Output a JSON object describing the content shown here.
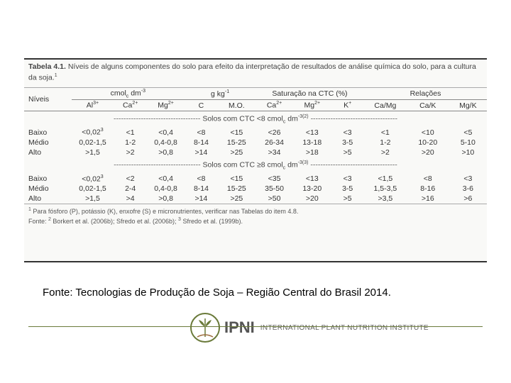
{
  "caption_bold": "Tabela 4.1.",
  "caption_text": " Níveis de alguns componentes do solo para efeito da interpretação de resultados de análise química do solo, para a cultura da soja.",
  "caption_sup": "1",
  "row_label": "Níveis",
  "groups": [
    {
      "label_html": "cmol<sub>c</sub> dm<sup>-3</sup>",
      "span": 3
    },
    {
      "label_html": "g kg<sup>-1</sup>",
      "span": 2
    },
    {
      "label_html": "Saturação na CTC (%)",
      "span": 3
    },
    {
      "label_html": "Relações",
      "span": 3
    }
  ],
  "columns": [
    {
      "label_html": "Al<sup>3+</sup>"
    },
    {
      "label_html": "Ca<sup>2+</sup>"
    },
    {
      "label_html": "Mg<sup>2+</sup>"
    },
    {
      "label_html": "C"
    },
    {
      "label_html": "M.O."
    },
    {
      "label_html": "Ca<sup>2+</sup>"
    },
    {
      "label_html": "Mg<sup>2+</sup>"
    },
    {
      "label_html": "K<sup>+</sup>"
    },
    {
      "label_html": "Ca/Mg"
    },
    {
      "label_html": "Ca/K"
    },
    {
      "label_html": "Mg/K"
    }
  ],
  "section1_label_html": "Solos com CTC &lt;8 cmol<sub>c</sub> dm<sup>-3(2)</sup>",
  "section2_label_html": "Solos com CTC ≥8 cmol<sub>c</sub> dm<sup>-3(3)</sup>",
  "rows1": [
    {
      "level": "Baixo",
      "cells_html": [
        "&lt;0,02<sup>3</sup>",
        "&lt;1",
        "&lt;0,4",
        "&lt;8",
        "&lt;15",
        "&lt;26",
        "&lt;13",
        "&lt;3",
        "&lt;1",
        "&lt;10",
        "&lt;5"
      ]
    },
    {
      "level": "Médio",
      "cells": [
        "0,02-1,5",
        "1-2",
        "0,4-0,8",
        "8-14",
        "15-25",
        "26-34",
        "13-18",
        "3-5",
        "1-2",
        "10-20",
        "5-10"
      ]
    },
    {
      "level": "Alto",
      "cells": [
        ">1,5",
        ">2",
        ">0,8",
        ">14",
        ">25",
        ">34",
        ">18",
        ">5",
        ">2",
        ">20",
        ">10"
      ]
    }
  ],
  "rows2": [
    {
      "level": "Baixo",
      "cells_html": [
        "&lt;0,02<sup>3</sup>",
        "&lt;2",
        "&lt;0,4",
        "&lt;8",
        "&lt;15",
        "&lt;35",
        "&lt;13",
        "&lt;3",
        "&lt;1,5",
        "&lt;8",
        "&lt;3"
      ]
    },
    {
      "level": "Médio",
      "cells": [
        "0,02-1,5",
        "2-4",
        "0,4-0,8",
        "8-14",
        "15-25",
        "35-50",
        "13-20",
        "3-5",
        "1,5-3,5",
        "8-16",
        "3-6"
      ]
    },
    {
      "level": "Alto",
      "cells": [
        ">1,5",
        ">4",
        ">0,8",
        ">14",
        ">25",
        ">50",
        ">20",
        ">5",
        ">3,5",
        ">16",
        ">6"
      ]
    }
  ],
  "footnote1_html": "<sup>1</sup> Para fósforo (P), potássio (K), enxofre (S) e micronutrientes, verificar nas Tabelas do item 4.8.",
  "footnote2_html": "Fonte: <sup>2</sup> Borkert et al. (2006b); Sfredo et al. (2006b); <sup>3</sup> Sfredo et al. (1999b).",
  "source_note": "Fonte: Tecnologias de Produção de Soja – Região Central do Brasil 2014.",
  "logo_main": "IPNI",
  "logo_sub": "INTERNATIONAL PLANT NUTRITION INSTITUTE"
}
